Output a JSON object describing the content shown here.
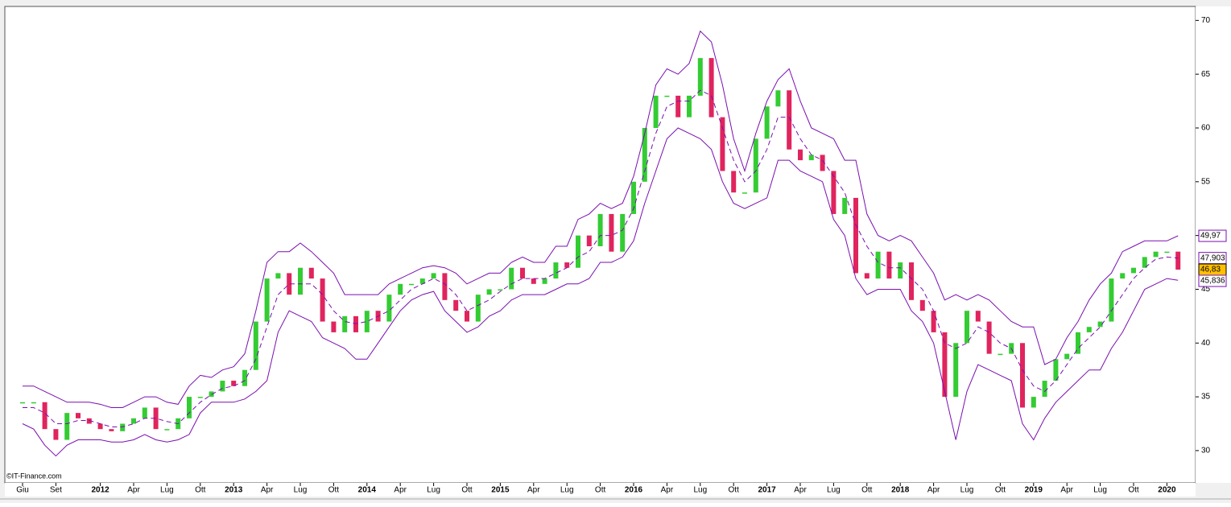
{
  "chart_data": {
    "type": "line",
    "credit": "©IT-Finance.com",
    "x": [
      "2011-06",
      "2011-07",
      "2011-08",
      "2011-09",
      "2011-10",
      "2011-11",
      "2011-12",
      "2012-01",
      "2012-02",
      "2012-03",
      "2012-04",
      "2012-05",
      "2012-06",
      "2012-07",
      "2012-08",
      "2012-09",
      "2012-10",
      "2012-11",
      "2012-12",
      "2013-01",
      "2013-02",
      "2013-03",
      "2013-04",
      "2013-05",
      "2013-06",
      "2013-07",
      "2013-08",
      "2013-09",
      "2013-10",
      "2013-11",
      "2013-12",
      "2014-01",
      "2014-02",
      "2014-03",
      "2014-04",
      "2014-05",
      "2014-06",
      "2014-07",
      "2014-08",
      "2014-09",
      "2014-10",
      "2014-11",
      "2014-12",
      "2015-01",
      "2015-02",
      "2015-03",
      "2015-04",
      "2015-05",
      "2015-06",
      "2015-07",
      "2015-08",
      "2015-09",
      "2015-10",
      "2015-11",
      "2015-12",
      "2016-01",
      "2016-02",
      "2016-03",
      "2016-04",
      "2016-05",
      "2016-06",
      "2016-07",
      "2016-08",
      "2016-09",
      "2016-10",
      "2016-11",
      "2016-12",
      "2017-01",
      "2017-02",
      "2017-03",
      "2017-04",
      "2017-05",
      "2017-06",
      "2017-07",
      "2017-08",
      "2017-09",
      "2017-10",
      "2017-11",
      "2017-12",
      "2018-01",
      "2018-02",
      "2018-03",
      "2018-04",
      "2018-05",
      "2018-06",
      "2018-07",
      "2018-08",
      "2018-09",
      "2018-10",
      "2018-11",
      "2018-12",
      "2019-01",
      "2019-02",
      "2019-03",
      "2019-04",
      "2019-05",
      "2019-06",
      "2019-07",
      "2019-08",
      "2019-09",
      "2019-10",
      "2019-11",
      "2019-12",
      "2020-01",
      "2020-02"
    ],
    "series": [
      {
        "type": "bar",
        "up_color": "#33cc33",
        "down_color": "#e0245e",
        "label_bg": "#ffc000",
        "last_label": "46,83",
        "values": [
          34.5,
          34.5,
          32,
          31,
          33.5,
          33,
          32.5,
          32,
          31.8,
          32.5,
          33,
          34,
          32,
          32,
          33,
          35,
          35,
          35.5,
          36.5,
          36,
          37.5,
          42,
          46,
          46.5,
          44.5,
          47,
          46,
          42,
          41,
          42.5,
          41,
          43,
          42,
          44.5,
          45.5,
          45.5,
          46,
          46.5,
          44,
          43,
          42,
          44.5,
          45,
          45,
          47,
          46,
          45.5,
          46,
          47.5,
          47,
          50,
          49,
          52,
          48.5,
          52,
          55,
          60,
          63,
          63,
          61,
          63,
          66.5,
          61,
          56,
          54,
          54,
          59,
          62,
          63.5,
          58,
          57,
          57.5,
          56,
          52,
          53.5,
          46.5,
          46,
          48.5,
          46,
          47.5,
          44,
          43,
          41,
          35,
          40,
          43,
          42,
          39,
          39,
          40,
          34,
          35,
          36.5,
          38.5,
          39,
          41,
          41.5,
          42,
          46,
          46.5,
          47,
          48,
          48.5,
          48.5,
          46.83
        ]
      },
      {
        "type": "line",
        "color": "#7a0fb0",
        "dashed": true,
        "label_bg": "#ffffff",
        "last_label": "47,903",
        "values": [
          34,
          34,
          33.5,
          32.5,
          32.5,
          32.8,
          32.8,
          32.5,
          32.2,
          32.2,
          32.5,
          33,
          33,
          32.7,
          32.5,
          33.5,
          34.5,
          35.2,
          35.8,
          36,
          36.5,
          38.5,
          41.5,
          44.5,
          45.5,
          45.5,
          45.5,
          44.5,
          43,
          42,
          41.8,
          42,
          42.5,
          43,
          44,
          45,
          45.5,
          46,
          45.5,
          44.5,
          43,
          43.5,
          44,
          44.8,
          45.5,
          46,
          46,
          46,
          46.5,
          47,
          48,
          48.5,
          50,
          50,
          50.5,
          52.5,
          56,
          59.5,
          62,
          62.5,
          62.5,
          63.5,
          63,
          60,
          57,
          55,
          56,
          58,
          61,
          61,
          59,
          57.5,
          57,
          55.5,
          54,
          51,
          49,
          47.5,
          47,
          47,
          46,
          45,
          43,
          40,
          39.5,
          40,
          41.5,
          41,
          40,
          39.5,
          37.5,
          36,
          35.5,
          36.5,
          38,
          39.5,
          40.5,
          41.5,
          43,
          44.5,
          46,
          47,
          47.8,
          48,
          47.903
        ]
      },
      {
        "type": "line",
        "color": "#7a0fb0",
        "dashed": false,
        "label_bg": "#ffffff",
        "last_label": "49,97",
        "values": [
          36,
          36,
          35.5,
          35,
          34.5,
          34.5,
          34.5,
          34.3,
          34,
          34,
          34.5,
          35,
          35,
          34.5,
          34.3,
          36,
          37,
          36.8,
          37.5,
          37.8,
          39,
          43,
          47.5,
          48.5,
          48.5,
          49.3,
          48.5,
          47.5,
          46.5,
          44.5,
          44.5,
          44.5,
          44.5,
          45.5,
          46,
          46.5,
          47,
          47.2,
          47,
          46.5,
          45.5,
          46,
          46.5,
          46.5,
          47.5,
          48,
          47.5,
          47.5,
          49,
          49,
          51.5,
          52,
          53,
          52.5,
          53,
          55.5,
          59.5,
          64,
          65.5,
          65,
          66,
          69,
          68,
          64,
          59,
          56,
          59.5,
          62.5,
          64.5,
          65.5,
          62.5,
          60,
          59.5,
          59,
          57,
          57,
          52,
          50,
          49.5,
          50,
          49.5,
          48,
          46.5,
          44,
          44.5,
          44,
          44.5,
          44,
          43,
          42,
          41.5,
          41.5,
          38,
          38.5,
          40.5,
          42,
          44,
          45.5,
          46.5,
          48.5,
          49,
          49.5,
          49.5,
          49.5,
          49.97
        ]
      },
      {
        "type": "line",
        "color": "#7a0fb0",
        "dashed": false,
        "label_bg": "#ffffff",
        "last_label": "45,836",
        "values": [
          32.5,
          32,
          30.5,
          29.5,
          30.5,
          31,
          31,
          31,
          30.8,
          30.8,
          31,
          31.5,
          31,
          30.8,
          31,
          31.5,
          33.5,
          34.5,
          34.5,
          34.5,
          34.8,
          35.5,
          36.5,
          41,
          43,
          42.5,
          42,
          40.5,
          40,
          39.5,
          38.5,
          38.5,
          40,
          41.5,
          43,
          44,
          44.5,
          44.8,
          43,
          42,
          41,
          41.5,
          42.5,
          43,
          44,
          44.5,
          44.5,
          44.5,
          45,
          45.5,
          45.5,
          46,
          47.5,
          47.5,
          48,
          49.5,
          53,
          56,
          59,
          60,
          59.5,
          59,
          58,
          55,
          53,
          52.5,
          53,
          53.5,
          57,
          57,
          56,
          55.5,
          55,
          51.5,
          50,
          46,
          44.5,
          45,
          45,
          45,
          43,
          42,
          40,
          35.5,
          31,
          35.5,
          38,
          37.5,
          37,
          36.5,
          32.5,
          31,
          33,
          34.5,
          35.5,
          36.5,
          37.5,
          37.5,
          39.5,
          41,
          43,
          45,
          45.5,
          46,
          45.836
        ]
      }
    ],
    "xticks": [
      {
        "value": "2011-06",
        "label": "Giu"
      },
      {
        "value": "2011-09",
        "label": "Set"
      },
      {
        "value": "2012-01",
        "label": "2012"
      },
      {
        "value": "2012-04",
        "label": "Apr"
      },
      {
        "value": "2012-07",
        "label": "Lug"
      },
      {
        "value": "2012-10",
        "label": "Ott"
      },
      {
        "value": "2013-01",
        "label": "2013"
      },
      {
        "value": "2013-04",
        "label": "Apr"
      },
      {
        "value": "2013-07",
        "label": "Lug"
      },
      {
        "value": "2013-10",
        "label": "Ott"
      },
      {
        "value": "2014-01",
        "label": "2014"
      },
      {
        "value": "2014-04",
        "label": "Apr"
      },
      {
        "value": "2014-07",
        "label": "Lug"
      },
      {
        "value": "2014-10",
        "label": "Ott"
      },
      {
        "value": "2015-01",
        "label": "2015"
      },
      {
        "value": "2015-04",
        "label": "Apr"
      },
      {
        "value": "2015-07",
        "label": "Lug"
      },
      {
        "value": "2015-10",
        "label": "Ott"
      },
      {
        "value": "2016-01",
        "label": "2016"
      },
      {
        "value": "2016-04",
        "label": "Apr"
      },
      {
        "value": "2016-07",
        "label": "Lug"
      },
      {
        "value": "2016-10",
        "label": "Ott"
      },
      {
        "value": "2017-01",
        "label": "2017"
      },
      {
        "value": "2017-04",
        "label": "Apr"
      },
      {
        "value": "2017-07",
        "label": "Lug"
      },
      {
        "value": "2017-10",
        "label": "Ott"
      },
      {
        "value": "2018-01",
        "label": "2018"
      },
      {
        "value": "2018-04",
        "label": "Apr"
      },
      {
        "value": "2018-07",
        "label": "Lug"
      },
      {
        "value": "2018-10",
        "label": "Ott"
      },
      {
        "value": "2019-01",
        "label": "2019"
      },
      {
        "value": "2019-04",
        "label": "Apr"
      },
      {
        "value": "2019-07",
        "label": "Lug"
      },
      {
        "value": "2019-10",
        "label": "Ott"
      },
      {
        "value": "2020-01",
        "label": "2020"
      }
    ],
    "ylim": [
      27,
      71.3
    ],
    "yticks": [
      30,
      35,
      40,
      45,
      50,
      55,
      60,
      65,
      70
    ]
  }
}
